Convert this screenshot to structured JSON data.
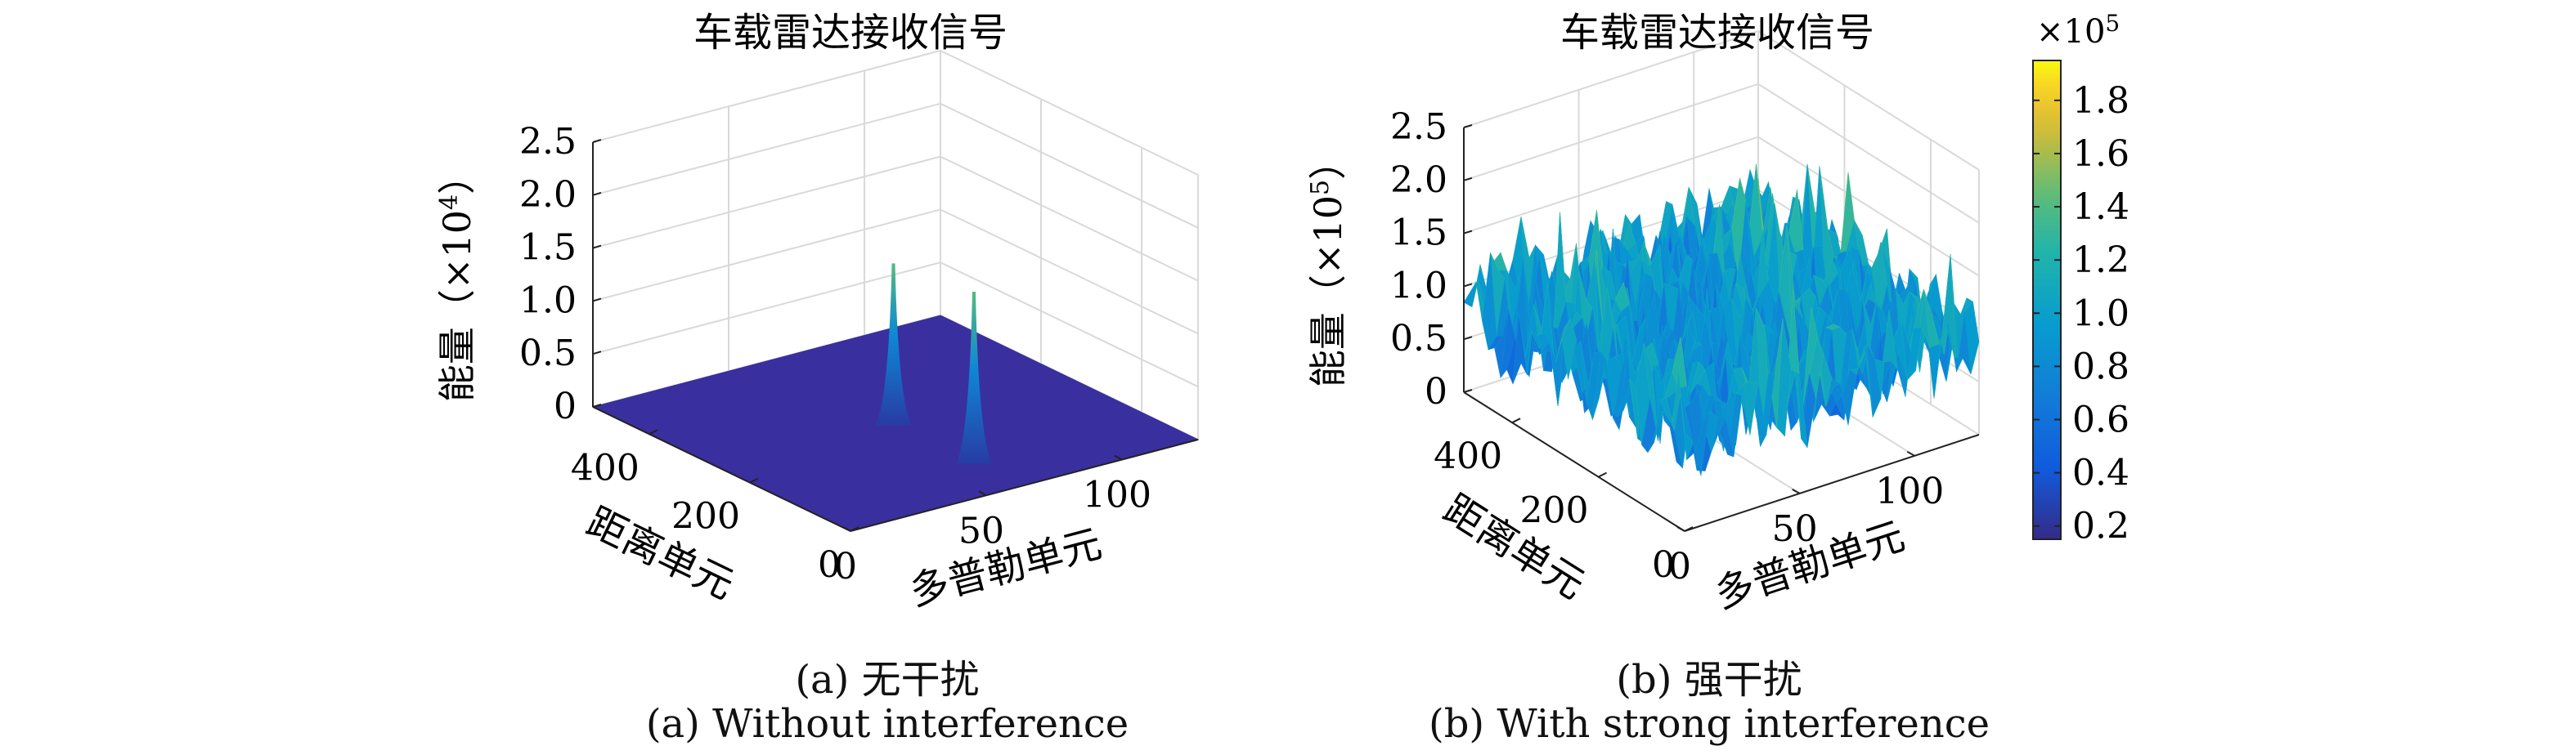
{
  "chart_data": [
    {
      "type": "surface",
      "panel_label": "(a) 无干扰",
      "panel_label_en": "(a) Without interference",
      "title": "车载雷达接收信号",
      "xlabel": "多普勒单元",
      "ylabel": "距离单元",
      "zlabel": "能量（×10",
      "zlabel_exp": "4",
      "zlabel_close": "）",
      "xlim": [
        0,
        128
      ],
      "ylim": [
        0,
        512
      ],
      "zlim": [
        0,
        2.5
      ],
      "xticks": [
        "0",
        "50",
        "100"
      ],
      "yticks": [
        "0",
        "200",
        "400"
      ],
      "zticks": [
        "0",
        "0.5",
        "1.0",
        "1.5",
        "2.0",
        "2.5"
      ],
      "surface_level": 0.0,
      "peaks": [
        {
          "doppler": 64,
          "range": 260,
          "energy": 1.5
        },
        {
          "doppler": 64,
          "range": 100,
          "energy": 1.6
        }
      ],
      "grid": true,
      "colormap": "parula"
    },
    {
      "type": "surface",
      "panel_label": "(b) 强干扰",
      "panel_label_en": "(b) With strong interference",
      "title": "车载雷达接收信号",
      "xlabel": "多普勒单元",
      "ylabel": "距离单元",
      "zlabel": "能量（×10",
      "zlabel_exp": "5",
      "zlabel_close": "）",
      "xlim": [
        0,
        128
      ],
      "ylim": [
        0,
        512
      ],
      "zlim": [
        0,
        2.5
      ],
      "xticks": [
        "0",
        "50",
        "100"
      ],
      "yticks": [
        "0",
        "200",
        "400"
      ],
      "zticks": [
        "0",
        "0.5",
        "1.0",
        "1.5",
        "2.0",
        "2.5"
      ],
      "noise_mean": 0.8,
      "noise_range": [
        0.2,
        1.9
      ],
      "grid": true,
      "colormap": "parula",
      "colorbar": {
        "exponent_label": "×10",
        "exponent": "5",
        "range": [
          0.15,
          1.95
        ],
        "ticks": [
          "0.2",
          "0.4",
          "0.6",
          "0.8",
          "1.0",
          "1.2",
          "1.4",
          "1.6",
          "1.8"
        ],
        "tick_values": [
          0.2,
          0.4,
          0.6,
          0.8,
          1.0,
          1.2,
          1.4,
          1.6,
          1.8
        ]
      }
    }
  ],
  "colors": {
    "flat_surface": "#3a2f9f",
    "axis": "#222222",
    "grid": "#d9d9d9",
    "parula_low": "#352a87",
    "parula_mid": "#21b9a9",
    "parula_high": "#f9fb0e"
  }
}
